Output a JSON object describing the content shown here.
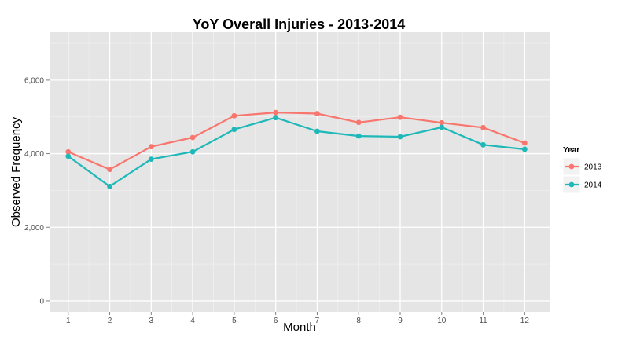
{
  "chart_data": {
    "type": "line",
    "title": "YoY Overall Injuries - 2013-2014",
    "xlabel": "Month",
    "ylabel": "Observed Frequency",
    "x": [
      1,
      2,
      3,
      4,
      5,
      6,
      7,
      8,
      9,
      10,
      11,
      12
    ],
    "xlim": [
      0.55,
      12.6
    ],
    "ylim": [
      -300,
      7300
    ],
    "yticks": [
      0,
      2000,
      4000,
      6000
    ],
    "ytick_labels": [
      "0",
      "2,000",
      "4,000",
      "6,000"
    ],
    "grid": true,
    "legend_title": "Year",
    "legend_position": "right",
    "series": [
      {
        "name": "2013",
        "color": "#f8766d",
        "values": [
          4050,
          3570,
          4190,
          4440,
          5030,
          5120,
          5090,
          4850,
          4990,
          4840,
          4710,
          4290
        ]
      },
      {
        "name": "2014",
        "color": "#1fb8b8",
        "values": [
          3930,
          3110,
          3850,
          4050,
          4660,
          4980,
          4610,
          4480,
          4460,
          4720,
          4240,
          4120
        ]
      }
    ]
  }
}
